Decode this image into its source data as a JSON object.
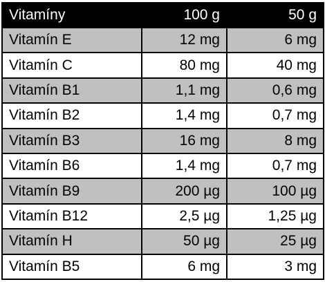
{
  "header": {
    "name": "Vitamíny",
    "col1": "100 g",
    "col2": "50 g"
  },
  "rows": [
    {
      "name": "Vitamín E",
      "v100": "12 mg",
      "v50": "6 mg"
    },
    {
      "name": "Vitamín C",
      "v100": "80 mg",
      "v50": "40 mg"
    },
    {
      "name": "Vitamín B1",
      "v100": "1,1 mg",
      "v50": "0,6 mg"
    },
    {
      "name": "Vitamín B2",
      "v100": "1,4 mg",
      "v50": "0,7 mg"
    },
    {
      "name": "Vitamín B3",
      "v100": "16 mg",
      "v50": "8 mg"
    },
    {
      "name": "Vitamín B6",
      "v100": "1,4 mg",
      "v50": "0,7 mg"
    },
    {
      "name": "Vitamín B9",
      "v100": "200 µg",
      "v50": "100 µg"
    },
    {
      "name": "Vitamín B12",
      "v100": "2,5 µg",
      "v50": "1,25 µg"
    },
    {
      "name": "Vitamín H",
      "v100": "50 µg",
      "v50": "25 µg"
    },
    {
      "name": "Vitamín B5",
      "v100": "6 mg",
      "v50": "3 mg"
    }
  ],
  "colors": {
    "header_bg": "#000000",
    "header_text": "#ffffff",
    "shaded_row": "#c0c0c0",
    "plain_row": "#ffffff"
  }
}
